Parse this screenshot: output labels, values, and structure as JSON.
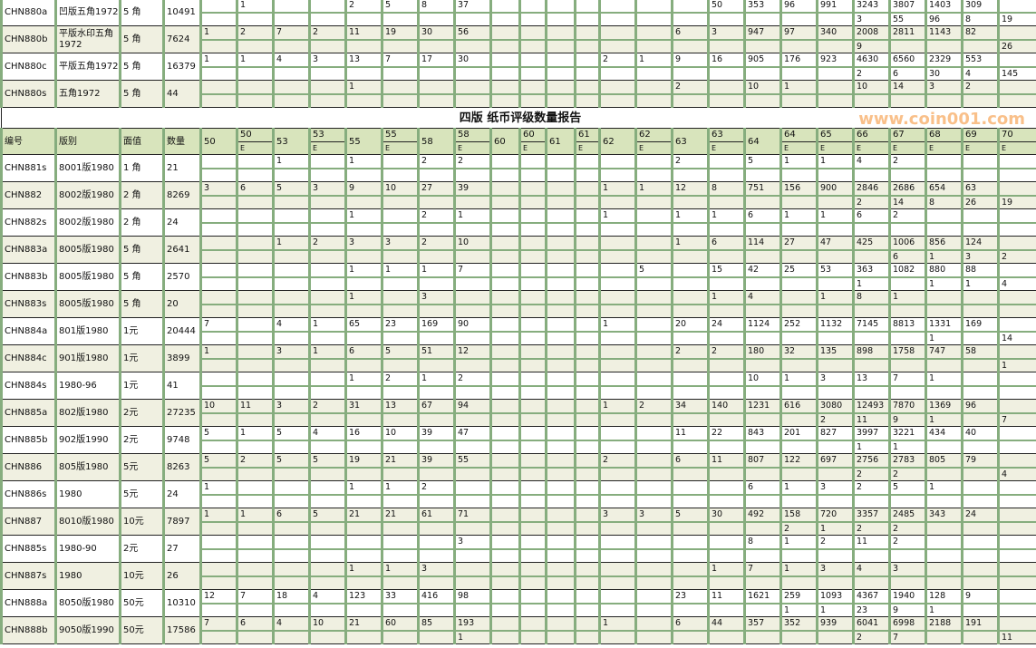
{
  "title": "四版  纸币评级数量报告",
  "watermark": "www.coin001.com",
  "colors": {
    "header_bg": "#d8e4bc",
    "alt_row_bg": "#f0f0e1",
    "grid_green": "#86ad7e",
    "watermark": "#f5963c"
  },
  "headers": {
    "id": "编号",
    "edition": "版别",
    "denom": "面值",
    "qty": "数量"
  },
  "grades": [
    {
      "label": "50",
      "e": ""
    },
    {
      "label": "50",
      "e": "E"
    },
    {
      "label": "53",
      "e": ""
    },
    {
      "label": "53",
      "e": "E"
    },
    {
      "label": "55",
      "e": ""
    },
    {
      "label": "55",
      "e": "E"
    },
    {
      "label": "58",
      "e": ""
    },
    {
      "label": "58",
      "e": "E"
    },
    {
      "label": "60",
      "e": ""
    },
    {
      "label": "60",
      "e": "E"
    },
    {
      "label": "61",
      "e": ""
    },
    {
      "label": "61",
      "e": "E"
    },
    {
      "label": "62",
      "e": ""
    },
    {
      "label": "62",
      "e": "E"
    },
    {
      "label": "63",
      "e": ""
    },
    {
      "label": "63",
      "e": "E"
    },
    {
      "label": "64",
      "e": ""
    },
    {
      "label": "64",
      "e": "E"
    },
    {
      "label": "65",
      "e": "E"
    },
    {
      "label": "66",
      "e": "E"
    },
    {
      "label": "67",
      "e": "E"
    },
    {
      "label": "68",
      "e": "E"
    },
    {
      "label": "69",
      "e": "E"
    },
    {
      "label": "70",
      "e": "E"
    }
  ],
  "top_rows": [
    {
      "id": "CHN880a",
      "edition": "凹版五角1972",
      "denom": "5 角",
      "qty": "10491",
      "top": [
        "",
        "1",
        "",
        "",
        "2",
        "5",
        "8",
        "37",
        "",
        "",
        "",
        "",
        "",
        "",
        "",
        "50",
        "353",
        "96",
        "991",
        "3243",
        "3807",
        "1403",
        "309",
        ""
      ],
      "bottom": {
        "19": "3",
        "20": "55",
        "21": "96",
        "22": "8",
        "23": "19"
      }
    },
    {
      "id": "CHN880b",
      "edition": "平版水印五角1972",
      "denom": "5 角",
      "qty": "7624",
      "top": [
        "1",
        "2",
        "7",
        "2",
        "11",
        "19",
        "30",
        "56",
        "",
        "",
        "",
        "",
        "",
        "",
        "6",
        "3",
        "947",
        "97",
        "340",
        "2008",
        "2811",
        "1143",
        "82",
        ""
      ],
      "bottom": {
        "19": "9",
        "23": "26"
      }
    },
    {
      "id": "CHN880c",
      "edition": "平版五角1972",
      "denom": "5 角",
      "qty": "16379",
      "top": [
        "1",
        "1",
        "4",
        "3",
        "13",
        "7",
        "17",
        "30",
        "",
        "",
        "",
        "",
        "2",
        "1",
        "9",
        "16",
        "905",
        "176",
        "923",
        "4630",
        "6560",
        "2329",
        "553",
        ""
      ],
      "bottom": {
        "19": "2",
        "20": "6",
        "21": "30",
        "22": "4",
        "23": "145"
      }
    },
    {
      "id": "CHN880s",
      "edition": "五角1972",
      "denom": "5 角",
      "qty": "44",
      "top": [
        "",
        "",
        "",
        "",
        "1",
        "",
        "",
        "",
        "",
        "",
        "",
        "",
        "",
        "",
        "2",
        "",
        "10",
        "1",
        "",
        "10",
        "14",
        "3",
        "2",
        ""
      ],
      "bottom": {}
    }
  ],
  "rows": [
    {
      "id": "CHN881s",
      "edition": "8001版1980",
      "denom": "1 角",
      "qty": "21",
      "top": [
        "",
        "",
        "1",
        "",
        "1",
        "",
        "2",
        "2",
        "",
        "",
        "",
        "",
        "",
        "",
        "2",
        "",
        "5",
        "1",
        "1",
        "4",
        "2",
        "",
        "",
        ""
      ],
      "bottom": {}
    },
    {
      "id": "CHN882",
      "edition": "8002版1980",
      "denom": "2 角",
      "qty": "8269",
      "top": [
        "3",
        "6",
        "5",
        "3",
        "9",
        "10",
        "27",
        "39",
        "",
        "",
        "",
        "",
        "1",
        "1",
        "12",
        "8",
        "751",
        "156",
        "900",
        "2846",
        "2686",
        "654",
        "63",
        ""
      ],
      "bottom": {
        "19": "2",
        "20": "14",
        "21": "8",
        "22": "26",
        "23": "19"
      }
    },
    {
      "id": "CHN882s",
      "edition": "8002版1980",
      "denom": "2 角",
      "qty": "24",
      "top": [
        "",
        "",
        "",
        "",
        "1",
        "",
        "2",
        "1",
        "",
        "",
        "",
        "",
        "1",
        "",
        "1",
        "1",
        "6",
        "1",
        "1",
        "6",
        "2",
        "",
        "",
        ""
      ],
      "bottom": {}
    },
    {
      "id": "CHN883a",
      "edition": "8005版1980",
      "denom": "5 角",
      "qty": "2641",
      "top": [
        "",
        "",
        "1",
        "2",
        "3",
        "3",
        "2",
        "10",
        "",
        "",
        "",
        "",
        "",
        "",
        "1",
        "6",
        "114",
        "27",
        "47",
        "425",
        "1006",
        "856",
        "124",
        ""
      ],
      "bottom": {
        "20": "6",
        "21": "1",
        "22": "3",
        "23": "2"
      }
    },
    {
      "id": "CHN883b",
      "edition": "8005版1980",
      "denom": "5 角",
      "qty": "2570",
      "top": [
        "",
        "",
        "",
        "",
        "1",
        "1",
        "1",
        "7",
        "",
        "",
        "",
        "",
        "",
        "5",
        "",
        "15",
        "42",
        "25",
        "53",
        "363",
        "1082",
        "880",
        "88",
        ""
      ],
      "bottom": {
        "19": "1",
        "21": "1",
        "22": "1",
        "23": "4"
      }
    },
    {
      "id": "CHN883s",
      "edition": "8005版1980",
      "denom": "5 角",
      "qty": "20",
      "top": [
        "",
        "",
        "",
        "",
        "1",
        "",
        "3",
        "",
        "",
        "",
        "",
        "",
        "",
        "",
        "",
        "1",
        "4",
        "",
        "1",
        "8",
        "1",
        "",
        "",
        ""
      ],
      "bottom": {}
    },
    {
      "id": "CHN884a",
      "edition": "801版1980",
      "denom": "1元",
      "qty": "20444",
      "top": [
        "7",
        "",
        "4",
        "1",
        "65",
        "23",
        "169",
        "90",
        "",
        "",
        "",
        "",
        "1",
        "",
        "20",
        "24",
        "1124",
        "252",
        "1132",
        "7145",
        "8813",
        "1331",
        "169",
        ""
      ],
      "bottom": {
        "21": "1",
        "23": "14"
      }
    },
    {
      "id": "CHN884c",
      "edition": "901版1980",
      "denom": "1元",
      "qty": "3899",
      "top": [
        "1",
        "",
        "3",
        "1",
        "6",
        "5",
        "51",
        "12",
        "",
        "",
        "",
        "",
        "",
        "",
        "2",
        "2",
        "180",
        "32",
        "135",
        "898",
        "1758",
        "747",
        "58",
        ""
      ],
      "bottom": {
        "23": "1"
      }
    },
    {
      "id": "CHN884s",
      "edition": "1980-96",
      "denom": "1元",
      "qty": "41",
      "top": [
        "",
        "",
        "",
        "",
        "1",
        "2",
        "1",
        "2",
        "",
        "",
        "",
        "",
        "",
        "",
        "",
        "",
        "10",
        "1",
        "3",
        "13",
        "7",
        "1",
        "",
        ""
      ],
      "bottom": {}
    },
    {
      "id": "CHN885a",
      "edition": "802版1980",
      "denom": "2元",
      "qty": "27235",
      "top": [
        "10",
        "11",
        "3",
        "2",
        "31",
        "13",
        "67",
        "94",
        "",
        "",
        "",
        "",
        "1",
        "2",
        "34",
        "140",
        "1231",
        "616",
        "3080",
        "12493",
        "7870",
        "1369",
        "96",
        ""
      ],
      "bottom": {
        "18": "2",
        "19": "11",
        "20": "9",
        "21": "1",
        "23": "7"
      }
    },
    {
      "id": "CHN885b",
      "edition": "902版1990",
      "denom": "2元",
      "qty": "9748",
      "top": [
        "5",
        "1",
        "5",
        "4",
        "16",
        "10",
        "39",
        "47",
        "",
        "",
        "",
        "",
        "",
        "",
        "11",
        "22",
        "843",
        "201",
        "827",
        "3997",
        "3221",
        "434",
        "40",
        ""
      ],
      "bottom": {
        "19": "1",
        "20": "1"
      }
    },
    {
      "id": "CHN886",
      "edition": "805版1980",
      "denom": "5元",
      "qty": "8263",
      "top": [
        "5",
        "2",
        "5",
        "5",
        "19",
        "21",
        "39",
        "55",
        "",
        "",
        "",
        "",
        "2",
        "",
        "6",
        "11",
        "807",
        "122",
        "697",
        "2756",
        "2783",
        "805",
        "79",
        ""
      ],
      "bottom": {
        "19": "2",
        "20": "2",
        "23": "4"
      }
    },
    {
      "id": "CHN886s",
      "edition": "1980",
      "denom": "5元",
      "qty": "24",
      "top": [
        "1",
        "",
        "",
        "",
        "1",
        "1",
        "2",
        "",
        "",
        "",
        "",
        "",
        "",
        "",
        "",
        "",
        "6",
        "1",
        "3",
        "2",
        "5",
        "1",
        "",
        ""
      ],
      "bottom": {}
    },
    {
      "id": "CHN887",
      "edition": "8010版1980",
      "denom": "10元",
      "qty": "7897",
      "top": [
        "1",
        "1",
        "6",
        "5",
        "21",
        "21",
        "61",
        "71",
        "",
        "",
        "",
        "",
        "3",
        "3",
        "5",
        "30",
        "492",
        "158",
        "720",
        "3357",
        "2485",
        "343",
        "24",
        ""
      ],
      "bottom": {
        "17": "2",
        "18": "1",
        "19": "2",
        "20": "2"
      }
    },
    {
      "id": "CHN885s",
      "edition": "1980-90",
      "denom": "2元",
      "qty": "27",
      "top": [
        "",
        "",
        "",
        "",
        "",
        "",
        "",
        "3",
        "",
        "",
        "",
        "",
        "",
        "",
        "",
        "",
        "8",
        "1",
        "2",
        "11",
        "2",
        "",
        "",
        ""
      ],
      "bottom": {}
    },
    {
      "id": "CHN887s",
      "edition": "1980",
      "denom": "10元",
      "qty": "26",
      "top": [
        "",
        "",
        "",
        "",
        "1",
        "1",
        "3",
        "",
        "",
        "",
        "",
        "",
        "",
        "",
        "",
        "1",
        "7",
        "1",
        "3",
        "4",
        "3",
        "",
        "",
        ""
      ],
      "bottom": {}
    },
    {
      "id": "CHN888a",
      "edition": "8050版1980",
      "denom": "50元",
      "qty": "10310",
      "top": [
        "12",
        "7",
        "18",
        "4",
        "123",
        "33",
        "416",
        "98",
        "",
        "",
        "",
        "",
        "",
        "",
        "23",
        "11",
        "1621",
        "259",
        "1093",
        "4367",
        "1940",
        "128",
        "9",
        ""
      ],
      "bottom": {
        "17": "1",
        "18": "1",
        "19": "23",
        "20": "9",
        "21": "1"
      }
    },
    {
      "id": "CHN888b",
      "edition": "9050版1990",
      "denom": "50元",
      "qty": "17586",
      "top": [
        "7",
        "6",
        "4",
        "10",
        "21",
        "60",
        "85",
        "193",
        "",
        "",
        "",
        "",
        "1",
        "",
        "6",
        "44",
        "357",
        "352",
        "939",
        "6041",
        "6998",
        "2188",
        "191",
        ""
      ],
      "bottom": {
        "7": "1",
        "19": "2",
        "20": "7",
        "23": "11"
      }
    }
  ]
}
